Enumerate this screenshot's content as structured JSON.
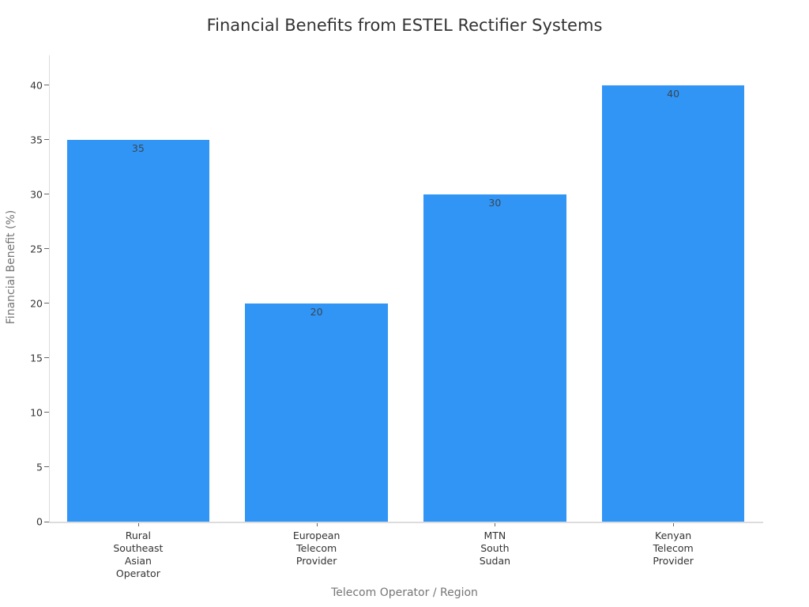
{
  "chart_data": {
    "type": "bar",
    "title": "Financial Benefits from ESTEL Rectifier Systems",
    "xlabel": "Telecom Operator / Region",
    "ylabel": "Financial Benefit (%)",
    "categories": [
      "Rural Southeast Asian Operator",
      "European Telecom Provider",
      "MTN South Sudan",
      "Kenyan Telecom Provider"
    ],
    "category_lines": [
      [
        "Rural",
        "Southeast",
        "Asian",
        "Operator"
      ],
      [
        "European",
        "Telecom",
        "Provider"
      ],
      [
        "MTN",
        "South",
        "Sudan"
      ],
      [
        "Kenyan",
        "Telecom",
        "Provider"
      ]
    ],
    "values": [
      35,
      20,
      30,
      40
    ],
    "bar_labels": [
      "35",
      "20",
      "30",
      "40"
    ],
    "yticks": [
      0,
      5,
      10,
      15,
      20,
      25,
      30,
      35,
      40
    ],
    "ylim": [
      0,
      42.75
    ],
    "grid": false,
    "legend": null,
    "bar_width_fraction": 0.8,
    "colors": {
      "bar": "#3095f5",
      "axis_line": "#dcdcdc",
      "tick_mark": "#666666",
      "tick_label": "#333333",
      "axis_title": "#757575",
      "title_color": "#333333",
      "value_label": "#3a4654"
    }
  }
}
